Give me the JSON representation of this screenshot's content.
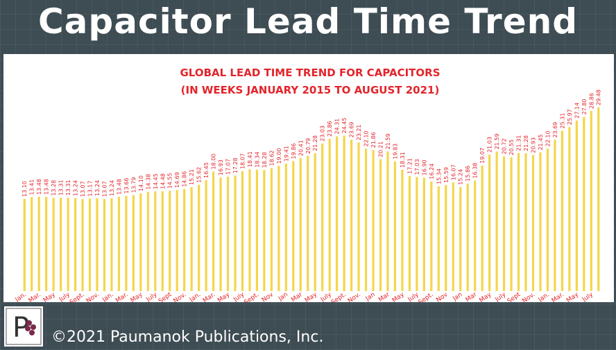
{
  "header": {
    "title": "Capacitor Lead Time Trend"
  },
  "footer": {
    "copyright": "©2021 Paumanok Publications, Inc."
  },
  "chart_data": {
    "type": "bar",
    "title": "GLOBAL LEAD TIME TREND FOR CAPACITORS",
    "subtitle": "(IN WEEKS JANUARY 2015 TO AUGUST 2021)",
    "color": "#f4d64a",
    "label_color": "#e3242b",
    "ylim": [
      -3.4,
      31
    ],
    "categories": [
      "Jan.",
      null,
      "Mar.",
      null,
      "May",
      null,
      "July",
      null,
      "Sept.",
      null,
      "Nov.",
      null,
      "Jan.",
      null,
      "Mar.",
      null,
      "May",
      null,
      "July",
      null,
      "Sept",
      null,
      "Nov.",
      null,
      "Jan.",
      null,
      "Mar.",
      null,
      "May",
      null,
      "July",
      null,
      "Sept.",
      null,
      "Nov",
      null,
      "Jan",
      null,
      "Mar",
      null,
      "May",
      null,
      "July",
      null,
      "Sept.",
      null,
      "Nov.",
      null,
      "Jan",
      null,
      "Mar",
      null,
      "May",
      null,
      "July",
      null,
      "Sept.",
      null,
      "Nov",
      null,
      "Jan",
      null,
      "Mar",
      null,
      "May",
      null,
      "July",
      null,
      "Sept",
      null,
      "Nov.",
      null,
      "Jan.",
      null,
      "Mar.",
      null,
      "May",
      null,
      "July",
      null
    ],
    "values": [
      13.1,
      13.41,
      13.48,
      13.48,
      13.28,
      13.31,
      13.31,
      13.24,
      13.07,
      13.17,
      13.24,
      13.07,
      13.24,
      13.48,
      13.66,
      13.79,
      14.1,
      14.38,
      14.45,
      14.48,
      14.55,
      14.69,
      14.86,
      15.21,
      15.62,
      16.45,
      18.0,
      16.93,
      17.07,
      17.28,
      18.07,
      18.41,
      18.34,
      18.28,
      18.62,
      19.0,
      19.41,
      19.86,
      20.41,
      20.79,
      21.28,
      23.03,
      23.86,
      24.31,
      24.45,
      23.69,
      23.21,
      22.1,
      21.86,
      20.21,
      21.59,
      19.83,
      18.31,
      17.21,
      17.03,
      16.9,
      16.24,
      15.34,
      15.59,
      16.07,
      15.24,
      15.86,
      16.38,
      19.07,
      21.03,
      21.59,
      20.72,
      20.55,
      21.31,
      21.28,
      20.93,
      21.45,
      22.1,
      23.69,
      25.31,
      25.97,
      27.14,
      27.8,
      28.86,
      29.48
    ],
    "value_labels": [
      "13.10",
      "13.41",
      "13.48",
      "13.48",
      "13.28",
      "13.31",
      "13.31",
      "13.24",
      "13.07",
      "13.17",
      "13.24",
      "13.07",
      "13.24",
      "13.48",
      "13.66",
      "13.79",
      "14.10",
      "14.38",
      "14.45",
      "14.48",
      "14.55",
      "14.69",
      "14.86",
      "15.21",
      "15.62",
      "16.45",
      "18.00",
      "16.93",
      "17.07",
      "17.28",
      "18.07",
      "18.41",
      "18.34",
      "18.28",
      "18.62",
      "19.00",
      "19.41",
      "19.86",
      "20.41",
      "20.79",
      "21.28",
      "23.03",
      "23.86",
      "24.31",
      "24.45",
      "23.69",
      "23.21",
      "22.10",
      "21.86",
      "20.21",
      "21.59",
      "19.83",
      "18.31",
      "17.21",
      "17.03",
      "16.90",
      "16.24",
      "15.34",
      "15.59",
      "16.07",
      "15.24",
      "15.86",
      "16.38",
      "19.07",
      "21.03",
      "21.59",
      "20.72",
      "20.55",
      "21.31",
      "21.28",
      "20.93",
      "21.45",
      "22.10",
      "23.69",
      "25.31",
      "25.97",
      "27.14",
      "27.80",
      "28.86",
      "29.48"
    ]
  }
}
